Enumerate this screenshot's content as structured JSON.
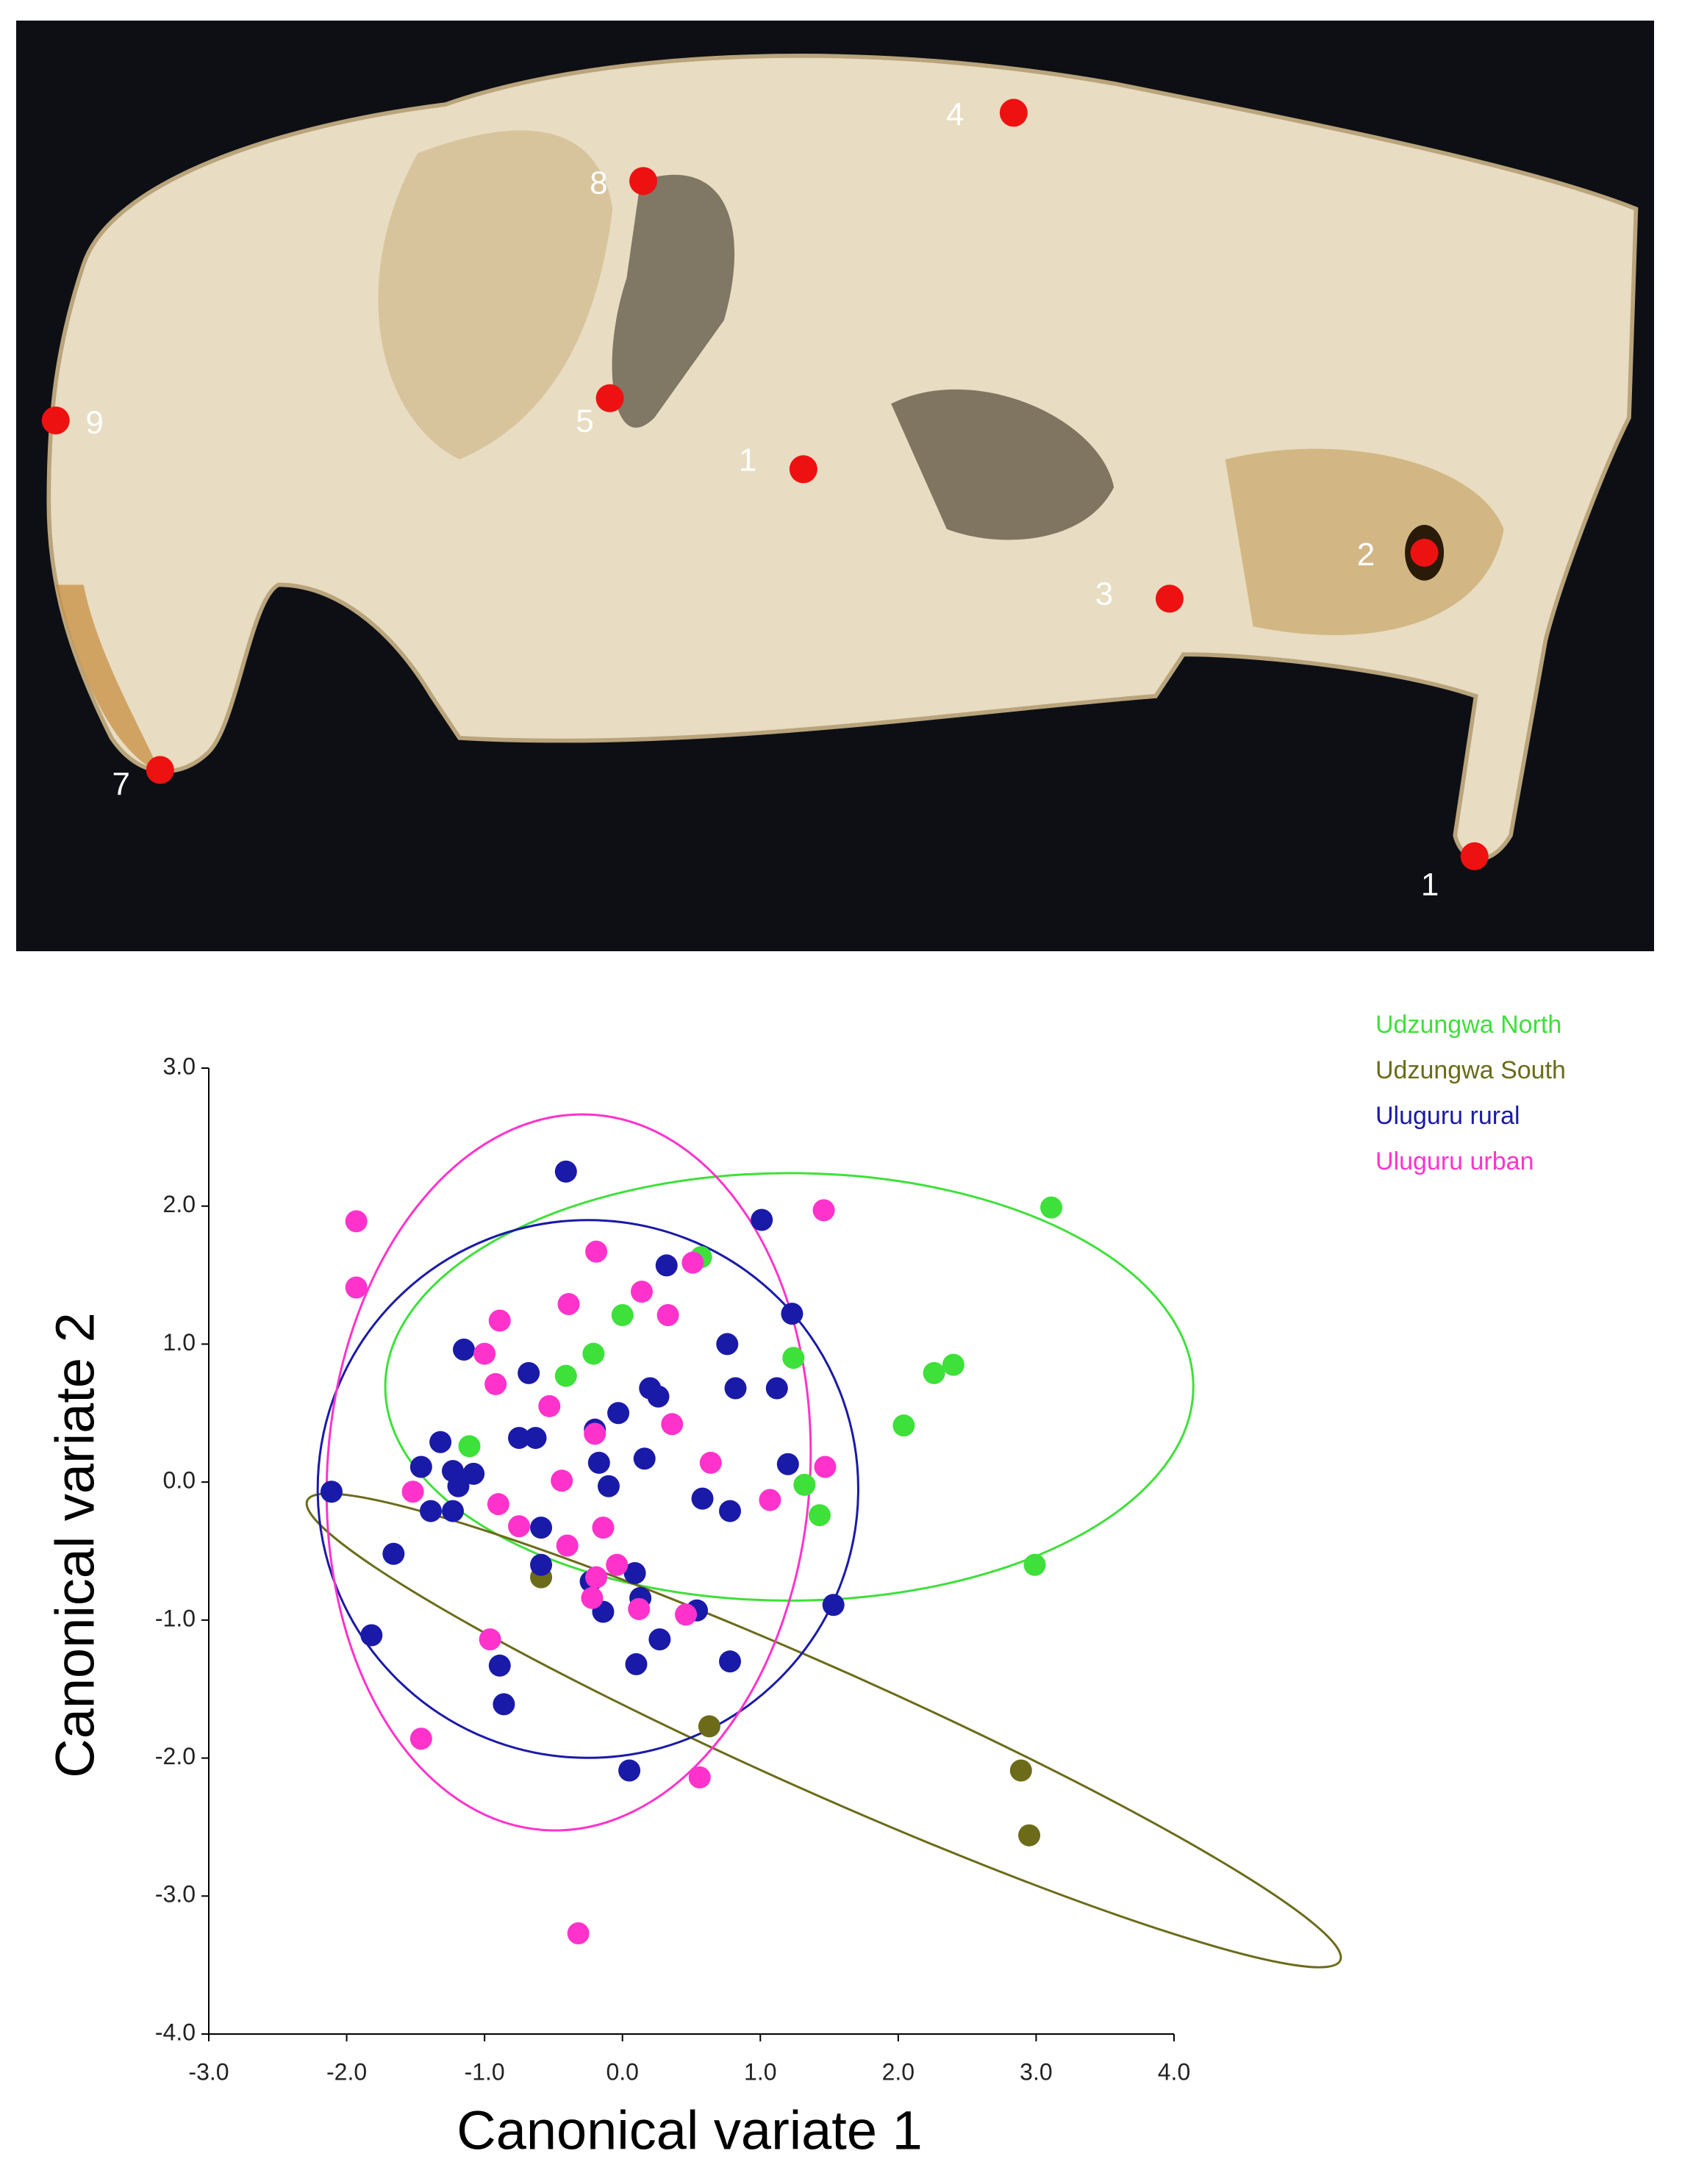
{
  "photo": {
    "landmarks": [
      {
        "label": "4"
      },
      {
        "label": "8"
      },
      {
        "label": "9"
      },
      {
        "label": "5"
      },
      {
        "label": "1"
      },
      {
        "label": "2"
      },
      {
        "label": "3"
      },
      {
        "label": "7"
      },
      {
        "label": "1"
      }
    ]
  },
  "chart_data": {
    "type": "scatter",
    "xlabel": "Canonical variate 1",
    "ylabel": "Canonical variate 2",
    "xlim": [
      -3,
      4
    ],
    "ylim": [
      -4,
      3
    ],
    "xticks": [
      {
        "value": -3,
        "label": "-3.0"
      },
      {
        "value": -2,
        "label": "-2.0"
      },
      {
        "value": -1,
        "label": "-1.0"
      },
      {
        "value": 0,
        "label": "0.0"
      },
      {
        "value": 1,
        "label": "1.0"
      },
      {
        "value": 2,
        "label": "2.0"
      },
      {
        "value": 3,
        "label": "3.0"
      },
      {
        "value": 4,
        "label": "4.0"
      }
    ],
    "yticks": [
      {
        "value": -4,
        "label": "-4.0"
      },
      {
        "value": -3,
        "label": "-3.0"
      },
      {
        "value": -2,
        "label": "-2.0"
      },
      {
        "value": -1,
        "label": "-1.0"
      },
      {
        "value": 0,
        "label": "0.0"
      },
      {
        "value": 1,
        "label": "1.0"
      },
      {
        "value": 2,
        "label": "2.0"
      },
      {
        "value": 3,
        "label": "3.0"
      }
    ],
    "legend": "top-right",
    "series": [
      {
        "name": "Udzungwa North",
        "color": "#3ee03a",
        "x": [
          3.11,
          0.57,
          0.0,
          -0.21,
          -0.41,
          1.24,
          2.26,
          2.4,
          2.04,
          -1.11,
          1.32,
          1.43,
          2.99
        ],
        "y": [
          1.99,
          1.63,
          1.21,
          0.93,
          0.77,
          0.9,
          0.79,
          0.85,
          0.41,
          0.26,
          -0.02,
          -0.24,
          -0.6
        ],
        "ellipse": {
          "cx": 1.21,
          "cy": 0.69,
          "rx": 2.93,
          "ry": 1.55,
          "angle": 0
        }
      },
      {
        "name": "Udzungwa South",
        "color": "#6b6b1a",
        "x": [
          -0.59,
          0.63,
          2.89,
          2.95
        ],
        "y": [
          -0.69,
          -1.77,
          -2.09,
          -2.56
        ],
        "ellipse": {
          "cx": 1.46,
          "cy": -1.8,
          "rx": 4.1,
          "ry": 0.45,
          "angle": -24
        }
      },
      {
        "name": "Uluguru rural",
        "color": "#1a1aa8",
        "x": [
          -0.41,
          1.01,
          0.32,
          1.23,
          -1.15,
          0.76,
          -0.68,
          0.82,
          1.12,
          0.2,
          0.26,
          -0.03,
          -0.2,
          -1.32,
          -0.75,
          -0.63,
          0.16,
          -0.17,
          1.2,
          -1.46,
          -1.23,
          -1.08,
          -1.19,
          -0.1,
          -2.11,
          0.58,
          -1.39,
          -1.23,
          0.78,
          -0.59,
          -1.66,
          -0.59,
          0.09,
          -0.23,
          0.13,
          1.53,
          0.54,
          -0.14,
          0.27,
          -1.82,
          -0.89,
          0.1,
          0.78,
          -0.86,
          0.05
        ],
        "y": [
          2.25,
          1.9,
          1.57,
          1.22,
          0.96,
          1.0,
          0.79,
          0.68,
          0.68,
          0.68,
          0.62,
          0.5,
          0.38,
          0.29,
          0.32,
          0.32,
          0.17,
          0.14,
          0.13,
          0.11,
          0.08,
          0.06,
          -0.03,
          -0.03,
          -0.07,
          -0.12,
          -0.21,
          -0.21,
          -0.21,
          -0.33,
          -0.52,
          -0.6,
          -0.66,
          -0.72,
          -0.84,
          -0.89,
          -0.93,
          -0.94,
          -1.14,
          -1.11,
          -1.33,
          -1.32,
          -1.3,
          -1.61,
          -2.09
        ],
        "ellipse": {
          "cx": -0.25,
          "cy": -0.05,
          "rx": 1.96,
          "ry": 1.95,
          "angle": 0
        }
      },
      {
        "name": "Uluguru urban",
        "color": "#ff33cc",
        "x": [
          1.46,
          -1.93,
          -0.19,
          0.51,
          -1.93,
          0.14,
          -0.39,
          0.33,
          -0.89,
          -1.0,
          -0.92,
          -0.53,
          0.36,
          -0.2,
          0.64,
          1.47,
          -0.44,
          -1.52,
          1.07,
          -0.9,
          -0.75,
          -0.14,
          -0.4,
          -0.04,
          -0.19,
          -0.22,
          0.12,
          0.46,
          -0.96,
          -1.46,
          0.56,
          -0.32
        ],
        "y": [
          1.97,
          1.89,
          1.67,
          1.59,
          1.41,
          1.38,
          1.29,
          1.21,
          1.17,
          0.93,
          0.71,
          0.55,
          0.42,
          0.35,
          0.14,
          0.11,
          0.01,
          -0.07,
          -0.13,
          -0.16,
          -0.32,
          -0.33,
          -0.46,
          -0.6,
          -0.69,
          -0.84,
          -0.92,
          -0.96,
          -1.14,
          -1.86,
          -2.14,
          -3.27
        ],
        "ellipse": {
          "cx": -0.39,
          "cy": 0.07,
          "rx": 1.75,
          "ry": 2.6,
          "angle": -4
        }
      }
    ]
  }
}
